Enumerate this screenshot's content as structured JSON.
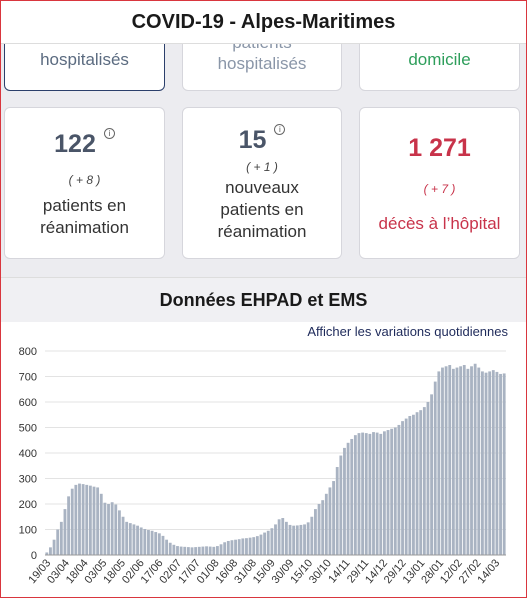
{
  "header": {
    "title": "COVID-19 - Alpes-Maritimes"
  },
  "top_cards": [
    {
      "label": "hospitalisés",
      "color": "#5b6b80"
    },
    {
      "label": "patients\nhospitalisés",
      "color": "#8a96a8"
    },
    {
      "label": "domicile",
      "color": "#2e9e5b"
    }
  ],
  "stat_cards": [
    {
      "value": "122",
      "delta": "( + 8 )",
      "label_lines": [
        "patients en",
        "réanimation"
      ],
      "value_color": "#4a5568",
      "label_color": "#333333",
      "has_info": true
    },
    {
      "value": "15",
      "delta": "( + 1 )",
      "label_lines": [
        "nouveaux",
        "patients en",
        "réanimation"
      ],
      "value_color": "#4a5568",
      "label_color": "#333333",
      "has_info": true
    },
    {
      "value": "1 271",
      "delta": "( + 7 )",
      "label_lines": [
        "décès à l’hôpital"
      ],
      "value_color": "#c8334a",
      "label_color": "#c8334a",
      "has_info": false
    }
  ],
  "section": {
    "title": "Données EHPAD et EMS"
  },
  "chart_toggle": "Afficher les variations quotidiennes",
  "chart_data": {
    "type": "bar",
    "title": "",
    "xlabel": "",
    "ylabel": "",
    "ylim": [
      0,
      800
    ],
    "yticks": [
      "0",
      "100",
      "200",
      "300",
      "400",
      "500",
      "600",
      "700",
      "800"
    ],
    "x_tick_labels": [
      "19/03",
      "03/04",
      "18/04",
      "03/05",
      "18/05",
      "02/06",
      "17/06",
      "02/07",
      "17/07",
      "01/08",
      "16/08",
      "31/08",
      "15/09",
      "30/09",
      "15/10",
      "30/10",
      "14/11",
      "29/11",
      "14/12",
      "29/12",
      "13/01",
      "28/01",
      "12/02",
      "27/02",
      "14/03"
    ],
    "grid": true,
    "bar_color": "#a9b3c2",
    "values": [
      10,
      30,
      60,
      100,
      130,
      180,
      230,
      260,
      275,
      280,
      278,
      275,
      272,
      268,
      265,
      240,
      205,
      200,
      207,
      198,
      175,
      150,
      130,
      125,
      120,
      115,
      108,
      102,
      98,
      95,
      90,
      85,
      75,
      60,
      48,
      40,
      35,
      33,
      32,
      31,
      30,
      31,
      32,
      33,
      34,
      33,
      32,
      35,
      42,
      50,
      55,
      58,
      60,
      62,
      65,
      66,
      68,
      70,
      74,
      80,
      88,
      95,
      105,
      120,
      140,
      145,
      130,
      118,
      115,
      116,
      118,
      120,
      128,
      150,
      180,
      200,
      215,
      240,
      265,
      290,
      345,
      390,
      420,
      440,
      455,
      470,
      478,
      480,
      478,
      475,
      482,
      480,
      475,
      485,
      490,
      495,
      500,
      510,
      525,
      535,
      545,
      550,
      560,
      568,
      580,
      600,
      630,
      680,
      720,
      735,
      740,
      745,
      730,
      735,
      740,
      745,
      730,
      740,
      750,
      735,
      720,
      715,
      720,
      725,
      718,
      710,
      712
    ]
  }
}
